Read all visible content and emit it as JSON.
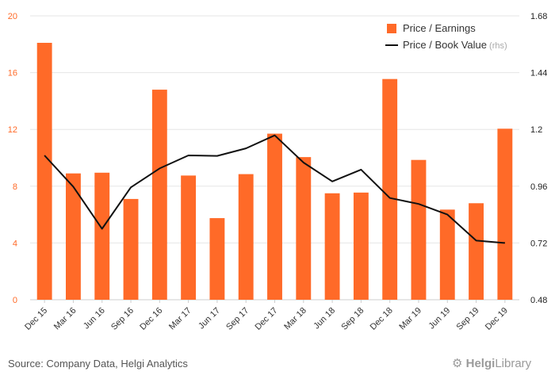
{
  "chart_data": {
    "type": "bar+line",
    "categories": [
      "Dec 15",
      "Mar 16",
      "Jun 16",
      "Sep 16",
      "Dec 16",
      "Mar 17",
      "Jun 17",
      "Sep 17",
      "Dec 17",
      "Mar 18",
      "Jun 18",
      "Sep 18",
      "Dec 18",
      "Mar 19",
      "Jun 19",
      "Sep 19",
      "Dec 19"
    ],
    "series": [
      {
        "name": "Price / Earnings",
        "type": "bar",
        "axis": "left",
        "color": "#ff6a28",
        "values": [
          18.1,
          8.9,
          8.95,
          7.1,
          14.8,
          8.75,
          5.75,
          8.85,
          11.7,
          10.05,
          7.5,
          7.55,
          15.55,
          9.85,
          6.35,
          6.8,
          12.05
        ]
      },
      {
        "name": "Price / Book Value",
        "type": "line",
        "axis": "right",
        "color": "#111111",
        "values": [
          1.09,
          0.958,
          0.78,
          0.955,
          1.035,
          1.09,
          1.088,
          1.12,
          1.175,
          1.06,
          0.98,
          1.03,
          0.91,
          0.885,
          0.84,
          0.73,
          0.72
        ]
      }
    ],
    "legend": {
      "items": [
        {
          "label": "Price / Earnings",
          "suffix": ""
        },
        {
          "label": "Price / Book Value",
          "suffix": " (rhs)"
        }
      ],
      "placement": "top-right"
    },
    "ylim_left": [
      0,
      20
    ],
    "yticks_left": [
      "0",
      "4",
      "8",
      "12",
      "16",
      "20"
    ],
    "ylim_right": [
      0.48,
      1.68
    ],
    "yticks_right": [
      "0.48",
      "0.72",
      "0.96",
      "1.2",
      "1.44",
      "1.68"
    ],
    "grid": true
  },
  "footer": {
    "source": "Source: Company Data, Helgi Analytics",
    "logo_brand": "Helgi",
    "logo_rest": "Library"
  },
  "colors": {
    "bar": "#ff6a28",
    "line": "#111111",
    "grid": "#e6e6e6",
    "left_axis_text": "#ff6a28",
    "right_axis_text": "#222222"
  }
}
